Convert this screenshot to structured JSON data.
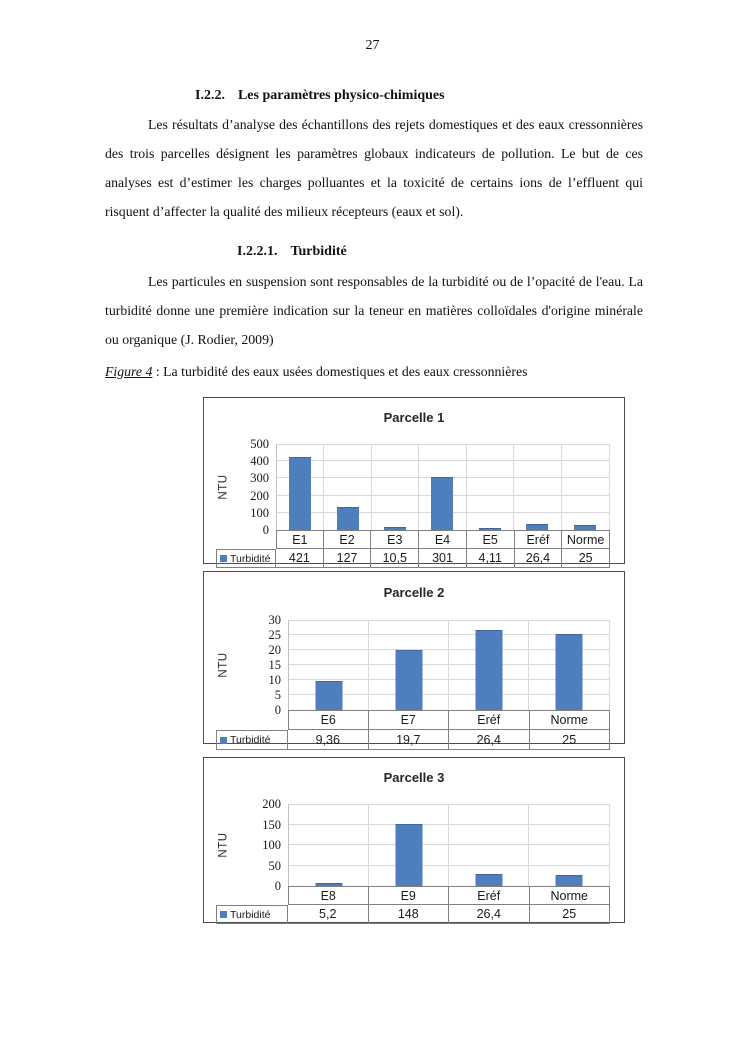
{
  "page": {
    "number": "27"
  },
  "headings": {
    "h1_number": "I.2.2.",
    "h1_label": "Les paramètres physico-chimiques",
    "h2_number": "I.2.2.1.",
    "h2_label": "Turbidité"
  },
  "paragraphs": {
    "p1": "Les résultats d’analyse des échantillons des rejets domestiques et des eaux cressonnières des trois parcelles désignent les paramètres globaux indicateurs de pollution. Le but de ces analyses est d’estimer  les charges polluantes et la toxicité de certains ions de l’effluent qui risquent d’affecter la qualité des milieux récepteurs (eaux et sol).",
    "p2": "Les particules en suspension sont responsables de la turbidité ou de l’opacité de l'eau. La turbidité donne une première indication sur la teneur en matières colloïdales d'origine minérale ou organique (J. Rodier, 2009)"
  },
  "figure_caption": {
    "label": "Figure 4",
    "separator": " : ",
    "text": "La turbidité des eaux usées domestiques et des eaux cressonnières"
  },
  "colors": {
    "bar": "#4e7ebe",
    "bar_edge": "#41699f",
    "gridline": "#d9d9d9",
    "axis": "#bfbfbf",
    "table_border": "#7f7f7f",
    "box_border": "#4d4d4d"
  },
  "chart_data": [
    {
      "type": "bar",
      "title": "Parcelle 1",
      "ylabel": "NTU",
      "legend": "Turbidité",
      "legend_position": "table-left",
      "grid": true,
      "categories": [
        "E1",
        "E2",
        "E3",
        "E4",
        "E5",
        "Eréf",
        "Norme"
      ],
      "values": [
        421,
        127,
        10.5,
        301,
        4.11,
        26.4,
        25
      ],
      "value_labels": [
        "421",
        "127",
        "10,5",
        "301",
        "4,11",
        "26,4",
        "25"
      ],
      "ylim": [
        0,
        500
      ],
      "yticks": [
        0,
        100,
        200,
        300,
        400,
        500
      ]
    },
    {
      "type": "bar",
      "title": "Parcelle 2",
      "ylabel": "NTU",
      "legend": "Turbidité",
      "legend_position": "table-left",
      "grid": true,
      "categories": [
        "E6",
        "E7",
        "Eréf",
        "Norme"
      ],
      "values": [
        9.36,
        19.7,
        26.4,
        25
      ],
      "value_labels": [
        "9,36",
        "19,7",
        "26,4",
        "25"
      ],
      "ylim": [
        0,
        30
      ],
      "yticks": [
        0,
        5,
        10,
        15,
        20,
        25,
        30
      ]
    },
    {
      "type": "bar",
      "title": "Parcelle 3",
      "ylabel": "NTU",
      "legend": "Turbidité",
      "legend_position": "table-left",
      "grid": true,
      "categories": [
        "E8",
        "E9",
        "Eréf",
        "Norme"
      ],
      "values": [
        5.2,
        148,
        26.4,
        25
      ],
      "value_labels": [
        "5,2",
        "148",
        "26,4",
        "25"
      ],
      "ylim": [
        0,
        200
      ],
      "yticks": [
        0,
        50,
        100,
        150,
        200
      ]
    }
  ]
}
